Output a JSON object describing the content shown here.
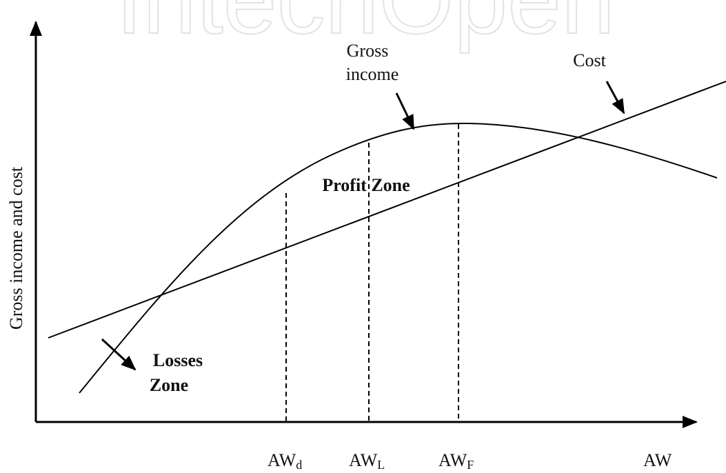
{
  "watermark": "IntechOpen",
  "y_axis_label": "Gross income and cost",
  "x_labels": [
    {
      "main": "AW",
      "sub": "d"
    },
    {
      "main": "AW",
      "sub": "L"
    },
    {
      "main": "AW",
      "sub": "F"
    },
    {
      "main": "AW"
    }
  ],
  "curves": {
    "gross_income": [
      "Gross",
      "income"
    ],
    "cost": "Cost"
  },
  "zones": {
    "profit": "Profit Zone",
    "losses": [
      "Losses",
      "Zone"
    ]
  }
}
